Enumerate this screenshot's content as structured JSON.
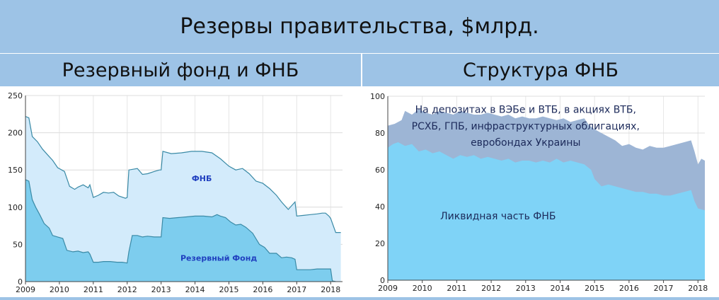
{
  "header": {
    "title": "Резервы правительства, $млрд."
  },
  "chart_data": [
    {
      "type": "area",
      "title": "Резервный фонд и ФНБ",
      "xlabel": "",
      "ylabel": "",
      "xlim": [
        2009.0,
        2018.35
      ],
      "ylim": [
        0,
        250
      ],
      "yticks": [
        0,
        50,
        100,
        150,
        200,
        250
      ],
      "xticks": [
        "2009",
        "2010",
        "2011",
        "2012",
        "2013",
        "2014",
        "2015",
        "2016",
        "2017",
        "2018"
      ],
      "grid": true,
      "colors": {
        "rf": "#7dcdee",
        "total": "#d3ebfb",
        "line": "#3a8aa6"
      },
      "series": [
        {
          "name": "Резервный Фонд",
          "x": [
            2009.0,
            2009.1,
            2009.2,
            2009.3,
            2009.42,
            2009.55,
            2009.7,
            2009.8,
            2009.95,
            2010.1,
            2010.22,
            2010.4,
            2010.55,
            2010.7,
            2010.85,
            2010.9,
            2011.0,
            2011.15,
            2011.3,
            2011.5,
            2011.7,
            2011.85,
            2012.0,
            2012.05,
            2012.15,
            2012.3,
            2012.45,
            2012.6,
            2012.8,
            2012.95,
            2013.0,
            2013.05,
            2013.25,
            2013.5,
            2013.75,
            2014.0,
            2014.25,
            2014.5,
            2014.65,
            2014.75,
            2014.9,
            2015.05,
            2015.2,
            2015.35,
            2015.5,
            2015.7,
            2015.9,
            2016.05,
            2016.2,
            2016.4,
            2016.55,
            2016.7,
            2016.85,
            2016.95,
            2017.0,
            2017.05,
            2017.2,
            2017.4,
            2017.6,
            2017.8,
            2017.95,
            2018.0,
            2018.05,
            2018.15
          ],
          "values": [
            137,
            135,
            110,
            100,
            90,
            78,
            72,
            62,
            60,
            58,
            42,
            40,
            41,
            39,
            40,
            37,
            26,
            26,
            27,
            27,
            26,
            26,
            25,
            40,
            62,
            62,
            60,
            61,
            60,
            60,
            60,
            86,
            85,
            86,
            87,
            88,
            88,
            87,
            90,
            88,
            86,
            80,
            76,
            77,
            73,
            65,
            50,
            46,
            38,
            38,
            32,
            33,
            32,
            30,
            16,
            16,
            16,
            16,
            17,
            17,
            17,
            17,
            1,
            0
          ]
        },
        {
          "name": "ФНБ",
          "x": [
            2009.0,
            2009.1,
            2009.2,
            2009.35,
            2009.5,
            2009.7,
            2009.8,
            2009.95,
            2010.15,
            2010.3,
            2010.45,
            2010.55,
            2010.7,
            2010.85,
            2010.9,
            2011.0,
            2011.15,
            2011.3,
            2011.45,
            2011.6,
            2011.75,
            2011.95,
            2012.0,
            2012.05,
            2012.3,
            2012.45,
            2012.6,
            2012.8,
            2012.95,
            2013.0,
            2013.05,
            2013.3,
            2013.6,
            2013.9,
            2014.2,
            2014.5,
            2014.75,
            2015.0,
            2015.2,
            2015.4,
            2015.6,
            2015.8,
            2016.0,
            2016.2,
            2016.4,
            2016.55,
            2016.75,
            2016.95,
            2017.0,
            2017.2,
            2017.4,
            2017.6,
            2017.75,
            2017.85,
            2017.95,
            2018.0,
            2018.15,
            2018.3
          ],
          "values": [
            222,
            220,
            195,
            188,
            178,
            168,
            163,
            153,
            148,
            128,
            124,
            127,
            130,
            126,
            130,
            113,
            116,
            120,
            119,
            120,
            115,
            112,
            113,
            150,
            152,
            144,
            145,
            148,
            150,
            150,
            175,
            172,
            173,
            175,
            175,
            173,
            165,
            155,
            150,
            152,
            145,
            135,
            132,
            125,
            116,
            107,
            97,
            107,
            88,
            89,
            90,
            91,
            92,
            92,
            88,
            85,
            66,
            66
          ]
        }
      ],
      "annotations": [
        {
          "text": "ФНБ",
          "x": 2014.2,
          "y": 135
        },
        {
          "text": "Резервный Фонд",
          "x": 2014.7,
          "y": 28
        }
      ]
    },
    {
      "type": "area",
      "title": "Структура ФНБ",
      "xlabel": "",
      "ylabel": "",
      "xlim": [
        2009.0,
        2018.2
      ],
      "ylim": [
        0,
        100
      ],
      "yticks": [
        0,
        20,
        40,
        60,
        80,
        100
      ],
      "xticks": [
        "2009",
        "2010",
        "2011",
        "2012",
        "2013",
        "2014",
        "2015",
        "2016",
        "2017",
        "2018"
      ],
      "grid": true,
      "colors": {
        "liquid": "#7fd3f7",
        "deposits": "#9db5d5"
      },
      "series": [
        {
          "name": "Ликвидная часть ФНБ",
          "x": [
            2009.0,
            2009.15,
            2009.3,
            2009.5,
            2009.7,
            2009.9,
            2010.1,
            2010.3,
            2010.5,
            2010.7,
            2010.9,
            2011.1,
            2011.3,
            2011.5,
            2011.7,
            2011.9,
            2012.1,
            2012.3,
            2012.5,
            2012.7,
            2012.9,
            2013.1,
            2013.3,
            2013.5,
            2013.7,
            2013.9,
            2014.1,
            2014.3,
            2014.5,
            2014.7,
            2014.9,
            2015.0,
            2015.2,
            2015.4,
            2015.6,
            2015.8,
            2016.0,
            2016.2,
            2016.4,
            2016.6,
            2016.8,
            2017.0,
            2017.2,
            2017.4,
            2017.6,
            2017.8,
            2017.9,
            2018.0,
            2018.2
          ],
          "values": [
            72,
            74,
            75,
            73,
            74,
            70,
            71,
            69,
            70,
            68,
            66,
            68,
            67,
            68,
            66,
            67,
            66,
            65,
            66,
            64,
            65,
            65,
            64,
            65,
            64,
            66,
            64,
            65,
            64,
            63,
            60,
            55,
            51,
            52,
            51,
            50,
            49,
            48,
            48,
            47,
            47,
            46,
            46,
            47,
            48,
            49,
            43,
            39,
            38
          ]
        },
        {
          "name": "На депозитах в ВЭБе и ВТБ, в акциях ВТБ, РСХБ, ГПБ, инфраструктурных облигациях, евробондах Украины",
          "x": [
            2009.0,
            2009.2,
            2009.4,
            2009.5,
            2009.7,
            2009.9,
            2010.1,
            2010.3,
            2010.5,
            2010.7,
            2010.9,
            2011.1,
            2011.3,
            2011.5,
            2011.7,
            2011.9,
            2012.1,
            2012.3,
            2012.5,
            2012.7,
            2012.9,
            2013.1,
            2013.3,
            2013.5,
            2013.7,
            2013.9,
            2014.1,
            2014.3,
            2014.5,
            2014.7,
            2014.85,
            2015.0,
            2015.2,
            2015.4,
            2015.6,
            2015.8,
            2016.0,
            2016.2,
            2016.4,
            2016.6,
            2016.8,
            2017.0,
            2017.2,
            2017.4,
            2017.6,
            2017.8,
            2017.9,
            2018.0,
            2018.1,
            2018.2
          ],
          "values": [
            84,
            85,
            87,
            92,
            90,
            93,
            91,
            90,
            92,
            91,
            90,
            92,
            91,
            90,
            90,
            91,
            90,
            89,
            90,
            88,
            89,
            88,
            88,
            89,
            88,
            87,
            88,
            86,
            87,
            88,
            84,
            82,
            80,
            78,
            76,
            73,
            74,
            72,
            71,
            73,
            72,
            72,
            73,
            74,
            75,
            76,
            70,
            63,
            66,
            65
          ]
        }
      ],
      "annotations": [
        {
          "text": "На депозитах в ВЭБе и ВТБ, в акциях ВТБ,",
          "x": 2013.0,
          "y": 91
        },
        {
          "text": "РСХБ, ГПБ, инфраструктурных облигациях,",
          "x": 2013.0,
          "y": 82
        },
        {
          "text": "евробондах Украины",
          "x": 2013.0,
          "y": 73
        },
        {
          "text": "Ликвидная часть ФНБ",
          "x": 2012.2,
          "y": 33
        }
      ]
    }
  ]
}
